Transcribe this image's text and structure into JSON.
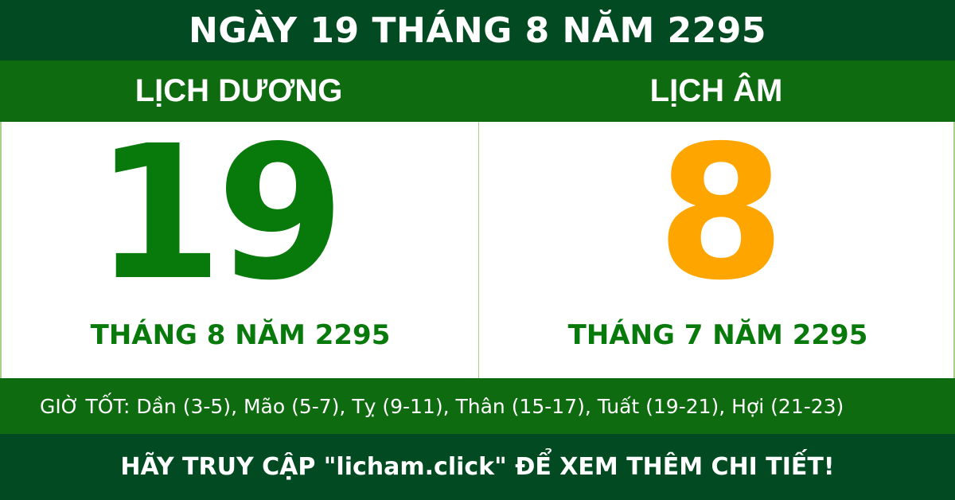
{
  "header": {
    "title": "NGÀY 19 THÁNG 8 NĂM 2295"
  },
  "solar": {
    "label": "LỊCH DƯƠNG",
    "day": "19",
    "month_year": "THÁNG 8 NĂM 2295",
    "color": "#087a0c"
  },
  "lunar": {
    "label": "LỊCH ÂM",
    "day": "8",
    "month_year": "THÁNG 7 NĂM 2295",
    "color": "#ffa500"
  },
  "good_hours": "GIỜ TỐT: Dần (3-5), Mão (5-7), Tỵ (9-11), Thân (15-17), Tuất (19-21), Hợi (21-23)",
  "footer": {
    "text": "HÃY TRUY CẬP \"licham.click\" ĐỂ XEM THÊM CHI TIẾT!"
  }
}
